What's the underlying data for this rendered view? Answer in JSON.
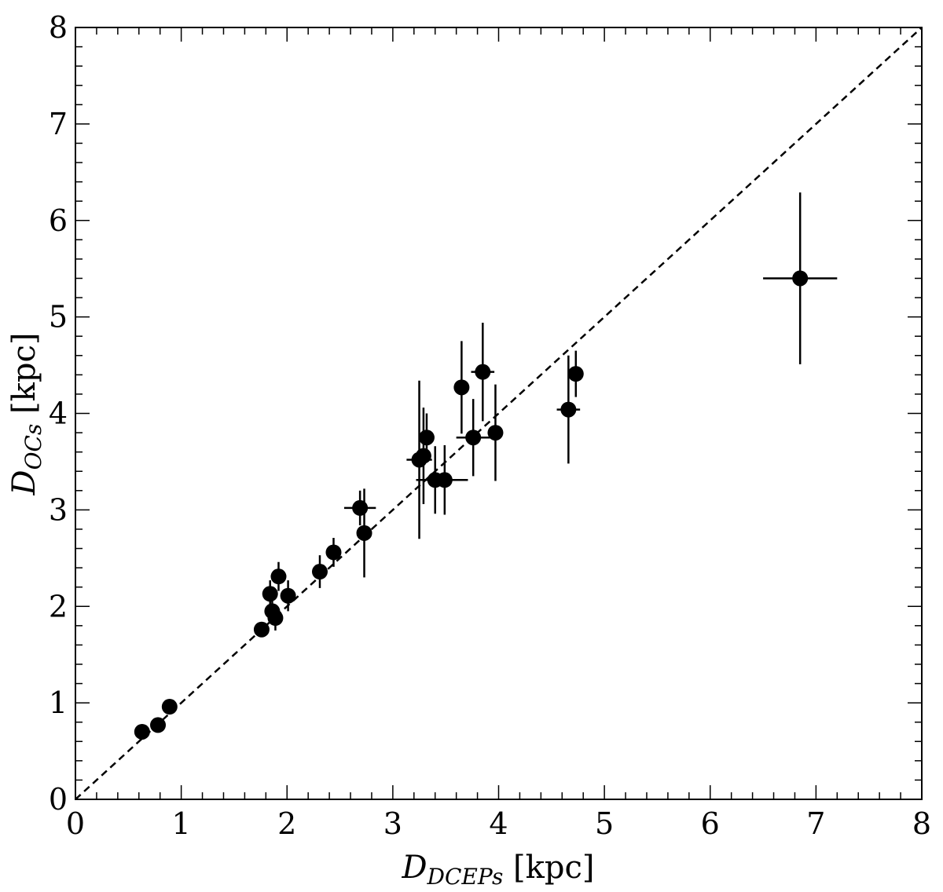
{
  "chart_data": {
    "type": "scatter",
    "xlabel": {
      "symbol": "D",
      "subscript": "DCEPs",
      "unit": "[kpc]"
    },
    "ylabel": {
      "symbol": "D",
      "subscript": "OCs",
      "unit": "[kpc]"
    },
    "xlim": [
      0,
      8
    ],
    "ylim": [
      0,
      8
    ],
    "xticks": [
      "0",
      "1",
      "2",
      "3",
      "4",
      "5",
      "6",
      "7",
      "8"
    ],
    "yticks": [
      "0",
      "1",
      "2",
      "3",
      "4",
      "5",
      "6",
      "7",
      "8"
    ],
    "grid": false,
    "legend": "none",
    "reference_line": {
      "style": "dashed",
      "from": [
        0,
        0
      ],
      "to": [
        8,
        8
      ]
    },
    "marker_color": "#000000",
    "points": [
      {
        "x": 0.63,
        "y": 0.7,
        "xerr": 0.0,
        "yerr": 0.0
      },
      {
        "x": 0.78,
        "y": 0.77,
        "xerr": 0.0,
        "yerr": 0.0
      },
      {
        "x": 0.89,
        "y": 0.96,
        "xerr": 0.0,
        "yerr": 0.0
      },
      {
        "x": 1.76,
        "y": 1.76,
        "xerr": 0.0,
        "yerr": 0.0
      },
      {
        "x": 1.84,
        "y": 2.13,
        "xerr": 0.06,
        "yerr": 0.14
      },
      {
        "x": 1.86,
        "y": 1.95,
        "xerr": 0.06,
        "yerr": 0.13
      },
      {
        "x": 1.89,
        "y": 1.88,
        "xerr": 0.0,
        "yerr": 0.13
      },
      {
        "x": 1.92,
        "y": 2.31,
        "xerr": 0.0,
        "yerr": 0.15
      },
      {
        "x": 2.01,
        "y": 2.11,
        "xerr": 0.0,
        "yerr": 0.16
      },
      {
        "x": 2.31,
        "y": 2.36,
        "xerr": 0.0,
        "yerr": 0.17
      },
      {
        "x": 2.44,
        "y": 2.56,
        "xerr": 0.0,
        "yerr": 0.15
      },
      {
        "x": 2.69,
        "y": 3.02,
        "xerr": 0.15,
        "yerr": 0.18
      },
      {
        "x": 2.73,
        "y": 2.76,
        "xerr": 0.0,
        "yerr": 0.46
      },
      {
        "x": 3.25,
        "y": 3.52,
        "xerr": 0.12,
        "yerr": 0.82
      },
      {
        "x": 3.29,
        "y": 3.56,
        "xerr": 0.06,
        "yerr": 0.5
      },
      {
        "x": 3.32,
        "y": 3.75,
        "xerr": 0.0,
        "yerr": 0.25
      },
      {
        "x": 3.4,
        "y": 3.31,
        "xerr": 0.18,
        "yerr": 0.35
      },
      {
        "x": 3.49,
        "y": 3.31,
        "xerr": 0.22,
        "yerr": 0.36
      },
      {
        "x": 3.65,
        "y": 4.27,
        "xerr": 0.0,
        "yerr": 0.48
      },
      {
        "x": 3.76,
        "y": 3.75,
        "xerr": 0.16,
        "yerr": 0.4
      },
      {
        "x": 3.85,
        "y": 4.43,
        "xerr": 0.11,
        "yerr": 0.51
      },
      {
        "x": 3.97,
        "y": 3.8,
        "xerr": 0.07,
        "yerr": 0.5
      },
      {
        "x": 4.66,
        "y": 4.04,
        "xerr": 0.11,
        "yerr": 0.56
      },
      {
        "x": 4.73,
        "y": 4.41,
        "xerr": 0.0,
        "yerr": 0.24
      },
      {
        "x": 6.85,
        "y": 5.4,
        "xerr": 0.35,
        "yerr": 0.89
      }
    ]
  }
}
